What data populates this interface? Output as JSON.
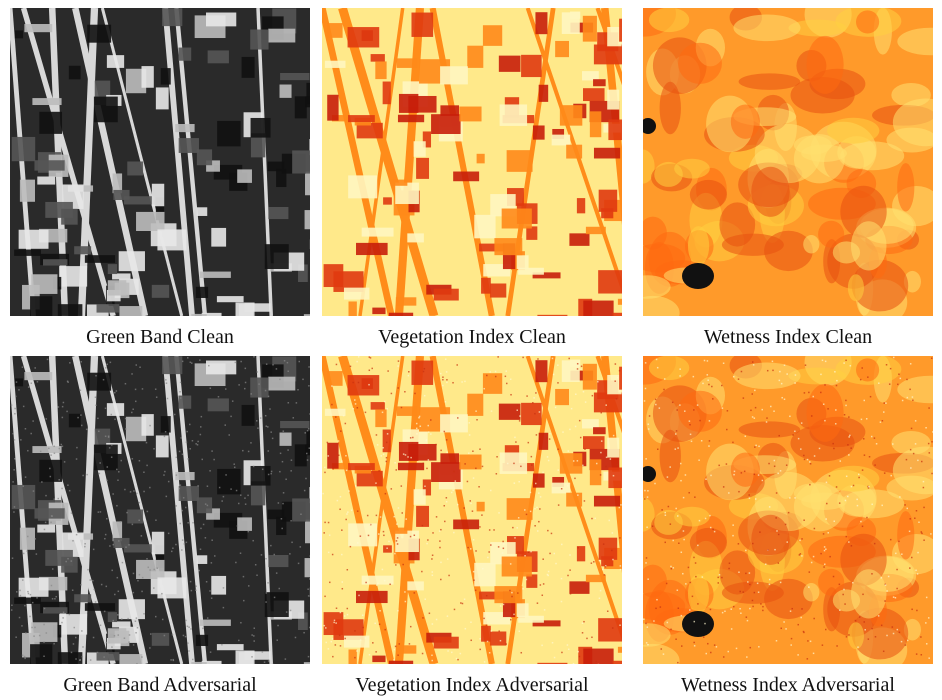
{
  "figure": {
    "panels": [
      {
        "caption": "Green Band Clean"
      },
      {
        "caption": "Vegetation Index Clean"
      },
      {
        "caption": "Wetness Index Clean"
      },
      {
        "caption": "Green Band Adversarial"
      },
      {
        "caption": "Vegetation Index Adversarial"
      },
      {
        "caption": "Wetness Index Adversarial"
      }
    ]
  }
}
